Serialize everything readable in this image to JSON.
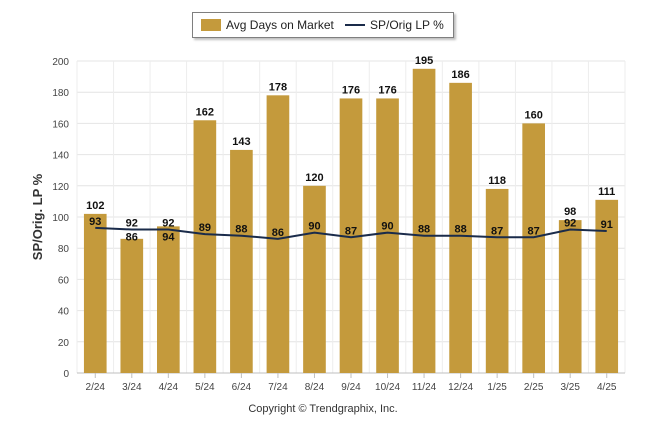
{
  "chart_data": {
    "type": "bar",
    "categories": [
      "2/24",
      "3/24",
      "4/24",
      "5/24",
      "6/24",
      "7/24",
      "8/24",
      "9/24",
      "10/24",
      "11/24",
      "12/24",
      "1/25",
      "2/25",
      "3/25",
      "4/25"
    ],
    "series": [
      {
        "name": "Avg Days on Market",
        "type": "bar",
        "color": "#c49a3c",
        "values": [
          102,
          86,
          94,
          162,
          143,
          178,
          120,
          176,
          176,
          195,
          186,
          118,
          160,
          98,
          111
        ],
        "labels": [
          "102",
          "",
          "",
          "162",
          "143",
          "178",
          "120",
          "176",
          "176",
          "195",
          "186",
          "118",
          "160",
          "98",
          "111"
        ]
      },
      {
        "name": "SP/Orig LP %",
        "type": "line",
        "color": "#1a2b4a",
        "values": [
          93,
          92,
          92,
          89,
          88,
          86,
          90,
          87,
          90,
          88,
          88,
          87,
          87,
          92,
          91
        ],
        "labels": [
          "93",
          "92",
          "92",
          "89",
          "88",
          "86",
          "90",
          "87",
          "90",
          "88",
          "88",
          "87",
          "87",
          "92",
          "91"
        ]
      }
    ],
    "extra_labels": [
      {
        "category_index": 1,
        "text": "86"
      },
      {
        "category_index": 2,
        "text": "94"
      }
    ],
    "ylabel": "SP/Orig. LP %",
    "ylim": [
      0,
      200
    ],
    "yticks": [
      0,
      20,
      40,
      60,
      80,
      100,
      120,
      140,
      160,
      180,
      200
    ],
    "grid": true,
    "legend_position": "top-center"
  },
  "legend": {
    "bar_label": "Avg Days on Market",
    "line_label": "SP/Orig LP %"
  },
  "footer": {
    "copyright": "Copyright © Trendgraphix, Inc."
  }
}
